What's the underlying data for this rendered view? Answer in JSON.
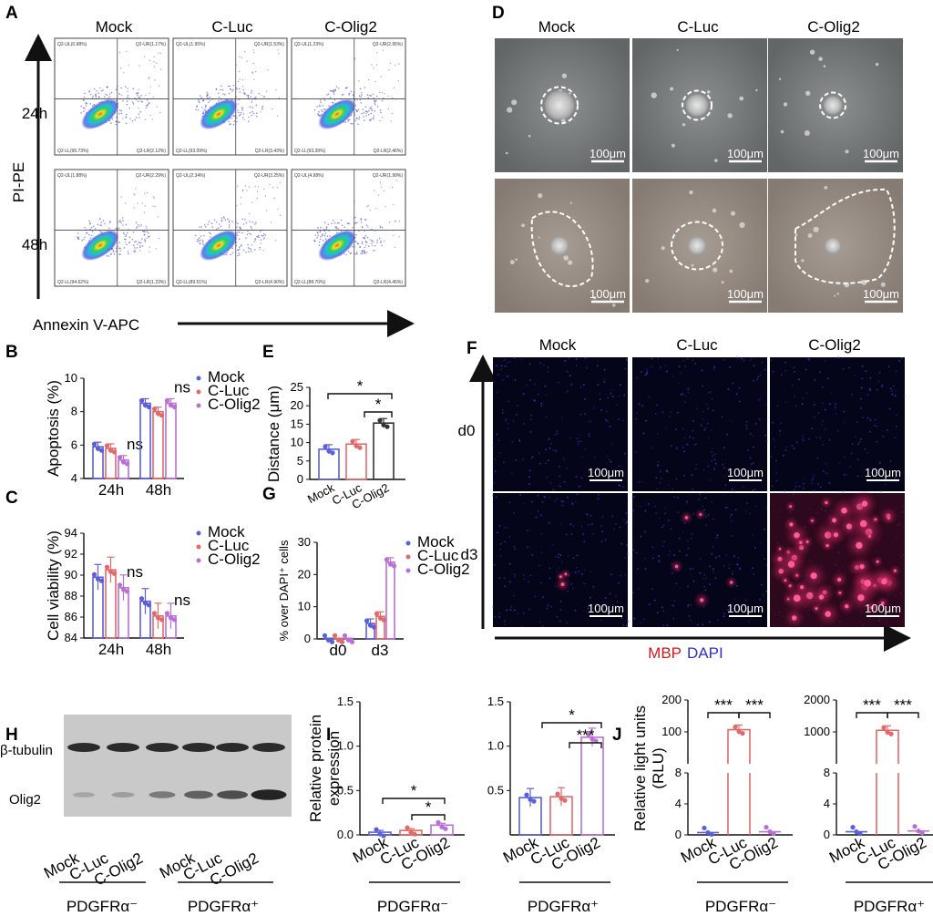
{
  "panel_letters": [
    "A",
    "B",
    "C",
    "D",
    "E",
    "F",
    "G",
    "H",
    "I",
    "J"
  ],
  "groups": [
    "Mock",
    "C-Luc",
    "C-Olig2"
  ],
  "colors": {
    "Mock": "#5b5fd9",
    "C-Luc": "#e2686a",
    "C-Olig2": "#b96fd6",
    "bar_E": "#333333"
  },
  "panelA": {
    "y_axis_label": "PI-PE",
    "x_axis_label": "Annexin V-APC",
    "rows": [
      "24h",
      "48h"
    ],
    "quadrants": [
      [
        {
          "UL": "Q2-UL(0.98%)",
          "UR": "Q2-UR(1.17%)",
          "LL": "Q2-LL(95.73%)",
          "LR": "Q2-LR(2.12%)"
        },
        {
          "UL": "Q2-UL(1.95%)",
          "UR": "Q2-UR(1.53%)",
          "LL": "Q2-LL(93.09%)",
          "LR": "Q2-LR(3.43%)"
        },
        {
          "UL": "Q2-UL(1.23%)",
          "UR": "Q2-UR(2.95%)",
          "LL": "Q2-LL(93.39%)",
          "LR": "Q2-LR(2.46%)"
        }
      ],
      [
        {
          "UL": "Q2-UL(1.88%)",
          "UR": "Q2-UR(2.29%)",
          "LL": "Q2-LL(94.62%)",
          "LR": "Q2-LR(1.23%)"
        },
        {
          "UL": "Q2-UL(2.34%)",
          "UR": "Q2-UR(3.25%)",
          "LL": "Q2-LL(89.51%)",
          "LR": "Q2-LR(4.90%)"
        },
        {
          "UL": "Q2-UL(4.98%)",
          "UR": "Q2-UR(1.99%)",
          "LL": "Q2-LL(88.70%)",
          "LR": "Q2-LR(4.45%)"
        }
      ]
    ]
  },
  "scalebar": "100μm",
  "panelF": {
    "rows": [
      "d0",
      "d3"
    ],
    "legend_mbp": "MBP",
    "legend_dapi": "DAPI"
  },
  "panelH": {
    "bands": [
      "β-tubulin",
      "Olig2"
    ],
    "lanes": [
      "Mock",
      "C-Luc",
      "C-Olig2",
      "Mock",
      "C-Luc",
      "C-Olig2"
    ],
    "groups": [
      "PDGFRα⁻",
      "PDGFRα⁺"
    ]
  },
  "chart_data": [
    {
      "id": "B",
      "type": "bar",
      "categories": [
        "24h",
        "48h"
      ],
      "ylabel": "Apoptosis (%)",
      "ylim": [
        4,
        10
      ],
      "yticks": [
        4,
        6,
        8,
        10
      ],
      "series": [
        {
          "name": "Mock",
          "values": [
            5.9,
            8.5
          ]
        },
        {
          "name": "C-Luc",
          "values": [
            5.8,
            8.0
          ]
        },
        {
          "name": "C-Olig2",
          "values": [
            5.1,
            8.5
          ]
        }
      ],
      "annotations": [
        "ns",
        "ns"
      ],
      "legend": "right"
    },
    {
      "id": "C",
      "type": "bar",
      "categories": [
        "24h",
        "48h"
      ],
      "ylabel": "Cell viability (%)",
      "ylim": [
        84,
        94
      ],
      "yticks": [
        84,
        86,
        88,
        90,
        92,
        94
      ],
      "series": [
        {
          "name": "Mock",
          "values": [
            89.8,
            87.5
          ]
        },
        {
          "name": "C-Luc",
          "values": [
            90.5,
            86.1
          ]
        },
        {
          "name": "C-Olig2",
          "values": [
            88.8,
            86.1
          ]
        }
      ],
      "annotations": [
        "ns",
        "ns"
      ],
      "legend": "right"
    },
    {
      "id": "E",
      "type": "bar",
      "categories": [
        "Mock",
        "C-Luc",
        "C-Olig2"
      ],
      "ylabel": "Distance (μm)",
      "ylim": [
        0,
        25
      ],
      "yticks": [
        0,
        5,
        10,
        15,
        20,
        25
      ],
      "values": [
        8.2,
        9.6,
        15.3
      ],
      "annotations": [
        "*",
        "*"
      ]
    },
    {
      "id": "G",
      "type": "bar",
      "categories": [
        "d0",
        "d3"
      ],
      "ylabel": "% over DAPI⁺ cells",
      "ylim": [
        0,
        30
      ],
      "yticks": [
        0,
        10,
        20,
        30
      ],
      "series": [
        {
          "name": "Mock",
          "values": [
            0.2,
            4.8
          ]
        },
        {
          "name": "C-Luc",
          "values": [
            0.2,
            7.0
          ]
        },
        {
          "name": "C-Olig2",
          "values": [
            0.2,
            23.8
          ]
        }
      ],
      "legend": "right"
    },
    {
      "id": "I1",
      "type": "bar",
      "categories": [
        "Mock",
        "C-Luc",
        "C-Olig2"
      ],
      "ylabel": "Relative protein expression",
      "ylim": [
        0,
        1.5
      ],
      "yticks": [
        0.0,
        0.5,
        1.0,
        1.5
      ],
      "values": [
        0.03,
        0.05,
        0.11
      ],
      "group": "PDGFRα⁻",
      "annotations": [
        "*",
        "*"
      ]
    },
    {
      "id": "I2",
      "type": "bar",
      "categories": [
        "Mock",
        "C-Luc",
        "C-Olig2"
      ],
      "ylim": [
        0,
        1.5
      ],
      "yticks": [
        0.5,
        1.0,
        1.5
      ],
      "values": [
        0.42,
        0.43,
        1.1
      ],
      "group": "PDGFRα⁺",
      "annotations": [
        "*",
        "***"
      ]
    },
    {
      "id": "J1",
      "type": "bar",
      "categories": [
        "Mock",
        "C-Luc",
        "C-Olig2"
      ],
      "ylabel": "Relative light units (RLU)",
      "yticks_low": [
        0,
        4,
        8
      ],
      "yticks_high": [
        100,
        200
      ],
      "values": [
        0.3,
        107,
        0.4
      ],
      "group": "PDGFRα⁻",
      "annotations": [
        "***",
        "***"
      ]
    },
    {
      "id": "J2",
      "type": "bar",
      "categories": [
        "Mock",
        "C-Luc",
        "C-Olig2"
      ],
      "yticks_low": [
        0,
        4,
        8
      ],
      "yticks_high": [
        1000,
        2000
      ],
      "values": [
        0.4,
        1050,
        0.5
      ],
      "group": "PDGFRα⁺",
      "annotations": [
        "***",
        "***"
      ]
    }
  ]
}
